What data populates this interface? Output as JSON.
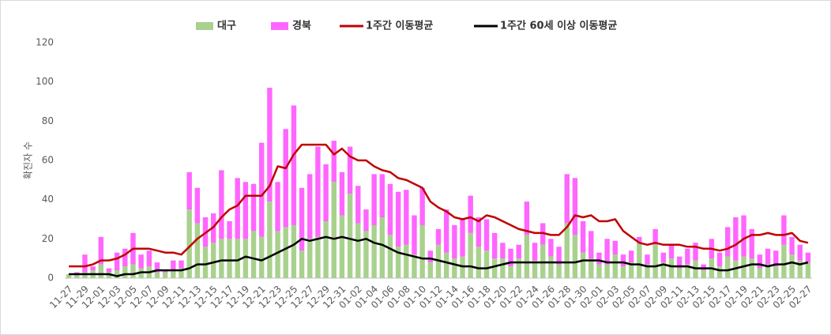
{
  "chart_data": {
    "type": "bar+line",
    "y_label": "확진자 수",
    "categories": [
      "11-27",
      null,
      "11-29",
      null,
      "12-01",
      null,
      "12-03",
      null,
      "12-05",
      null,
      "12-07",
      null,
      "12-09",
      null,
      "12-11",
      null,
      "12-13",
      null,
      "12-15",
      null,
      "12-17",
      null,
      "12-19",
      null,
      "12-21",
      null,
      "12-23",
      null,
      "12-25",
      null,
      "12-27",
      null,
      "12-29",
      null,
      "12-31",
      null,
      "01-02",
      null,
      "01-04",
      null,
      "01-06",
      null,
      "01-08",
      null,
      "01-10",
      null,
      "01-12",
      null,
      "01-14",
      null,
      "01-16",
      null,
      "01-18",
      null,
      "01-20",
      null,
      "01-22",
      null,
      "01-24",
      null,
      "01-26",
      null,
      "01-28",
      null,
      "01-30",
      null,
      "02-01",
      null,
      "02-03",
      null,
      "02-05",
      null,
      "02-07",
      null,
      "02-09",
      null,
      "02-11",
      null,
      "02-13",
      null,
      "02-15",
      null,
      "02-17",
      null,
      "02-19",
      null,
      "02-21",
      null,
      "02-23",
      null,
      "02-25",
      null,
      "02-27"
    ],
    "series": [
      {
        "name": "대구",
        "kind": "bar",
        "color": "#a9d18e",
        "values": [
          2,
          2,
          3,
          4,
          7,
          3,
          4,
          6,
          7,
          5,
          6,
          3,
          3,
          4,
          5,
          35,
          28,
          16,
          18,
          20,
          20,
          20,
          20,
          24,
          21,
          39,
          24,
          26,
          27,
          14,
          20,
          21,
          29,
          49,
          32,
          43,
          28,
          24,
          27,
          31,
          22,
          16,
          17,
          12,
          27,
          8,
          17,
          13,
          10,
          11,
          23,
          16,
          14,
          10,
          10,
          6,
          10,
          22,
          9,
          17,
          11,
          7,
          28,
          22,
          13,
          10,
          7,
          7,
          12,
          6,
          8,
          18,
          7,
          17,
          8,
          10,
          5,
          7,
          9,
          4,
          10,
          6,
          11,
          9,
          11,
          10,
          5,
          7,
          6,
          17,
          12,
          9,
          8
        ]
      },
      {
        "name": "경북",
        "kind": "bar",
        "color": "#ff66ff",
        "values": [
          0,
          1,
          9,
          2,
          14,
          2,
          9,
          9,
          16,
          7,
          8,
          5,
          1,
          5,
          4,
          19,
          18,
          15,
          15,
          35,
          9,
          31,
          29,
          24,
          48,
          58,
          25,
          50,
          61,
          32,
          33,
          46,
          29,
          21,
          22,
          24,
          19,
          11,
          26,
          22,
          26,
          28,
          28,
          20,
          19,
          6,
          8,
          22,
          17,
          19,
          19,
          15,
          16,
          13,
          8,
          9,
          7,
          17,
          9,
          11,
          9,
          9,
          25,
          29,
          16,
          14,
          6,
          13,
          7,
          6,
          6,
          3,
          5,
          8,
          5,
          7,
          6,
          8,
          9,
          3,
          10,
          7,
          15,
          22,
          21,
          15,
          7,
          8,
          8,
          15,
          9,
          8,
          5
        ]
      },
      {
        "name": "1주간 이동평균",
        "kind": "line",
        "color": "#c00000",
        "values": [
          6,
          6,
          6,
          7,
          9,
          9,
          10,
          12,
          15,
          15,
          15,
          14,
          13,
          13,
          12,
          16,
          20,
          23,
          26,
          31,
          35,
          37,
          42,
          42,
          42,
          47,
          57,
          56,
          63,
          68,
          68,
          68,
          68,
          63,
          66,
          62,
          60,
          60,
          57,
          55,
          54,
          51,
          50,
          48,
          46,
          39,
          36,
          34,
          31,
          30,
          31,
          29,
          32,
          31,
          29,
          27,
          25,
          24,
          23,
          23,
          22,
          22,
          26,
          32,
          31,
          32,
          29,
          29,
          30,
          24,
          21,
          18,
          17,
          18,
          17,
          17,
          17,
          16,
          16,
          15,
          15,
          14,
          15,
          17,
          20,
          22,
          22,
          23,
          22,
          22,
          23,
          19,
          18
        ]
      },
      {
        "name": "1주간 60세 이상 이동평균",
        "kind": "line",
        "color": "#000000",
        "values": [
          2,
          2,
          2,
          2,
          2,
          2,
          1,
          2,
          2,
          3,
          3,
          4,
          4,
          4,
          4,
          5,
          7,
          7,
          8,
          9,
          9,
          9,
          11,
          10,
          9,
          11,
          13,
          15,
          17,
          20,
          19,
          20,
          21,
          20,
          21,
          20,
          19,
          20,
          18,
          17,
          15,
          13,
          12,
          11,
          10,
          10,
          9,
          8,
          7,
          6,
          6,
          5,
          5,
          6,
          7,
          8,
          8,
          8,
          8,
          8,
          8,
          8,
          8,
          8,
          9,
          9,
          9,
          8,
          8,
          8,
          7,
          7,
          6,
          6,
          7,
          6,
          6,
          6,
          5,
          5,
          5,
          4,
          4,
          5,
          6,
          7,
          7,
          6,
          7,
          7,
          8,
          7,
          8
        ]
      }
    ],
    "ylim": [
      0,
      120
    ],
    "yticks": [
      0,
      20,
      40,
      60,
      80,
      100,
      120
    ],
    "grid": false,
    "legend": "top"
  }
}
